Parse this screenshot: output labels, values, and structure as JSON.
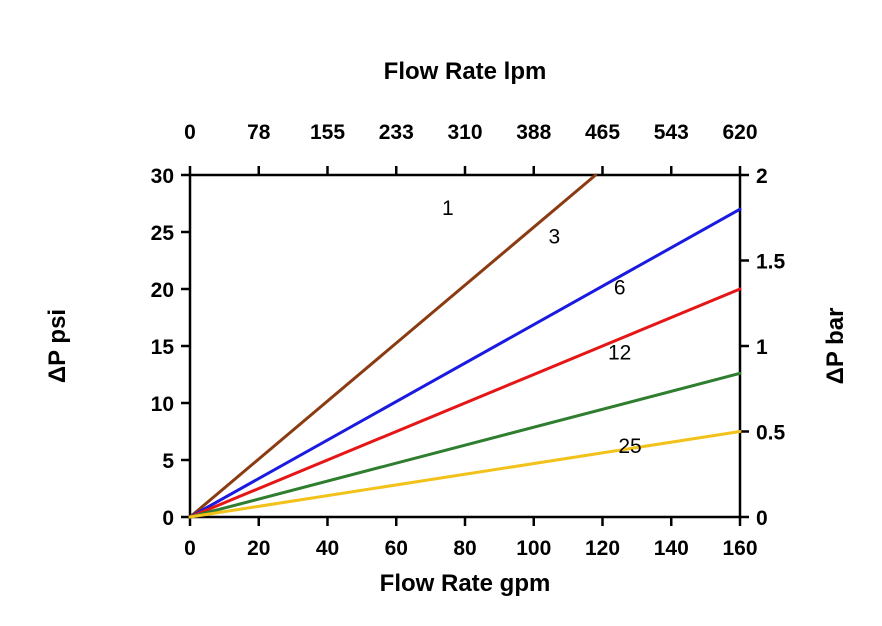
{
  "chart_data": {
    "type": "line",
    "title_top": "Flow Rate lpm",
    "xlabel_bottom": "Flow Rate gpm",
    "ylabel_left": "ΔP psi",
    "ylabel_right": "ΔP bar",
    "x_bottom": {
      "min": 0,
      "max": 160,
      "ticks": [
        0,
        20,
        40,
        60,
        80,
        100,
        120,
        140,
        160
      ]
    },
    "x_top": {
      "min": 0,
      "max": 620,
      "ticks": [
        0,
        78,
        155,
        233,
        310,
        388,
        465,
        543,
        620
      ]
    },
    "y_left": {
      "min": 0,
      "max": 30,
      "ticks": [
        0,
        5,
        10,
        15,
        20,
        25,
        30
      ]
    },
    "y_right": {
      "min": 0,
      "max": 2,
      "ticks": [
        0,
        0.5,
        1,
        1.5,
        2
      ]
    },
    "grid": false,
    "series": [
      {
        "name": "1",
        "color": "#8a3b12",
        "x": [
          0,
          118
        ],
        "y": [
          0,
          30
        ],
        "label_pos": {
          "x": 75,
          "y": 26.5
        }
      },
      {
        "name": "3",
        "color": "#1a1ae0",
        "x": [
          0,
          160
        ],
        "y": [
          0,
          27
        ],
        "label_pos": {
          "x": 106,
          "y": 24
        }
      },
      {
        "name": "6",
        "color": "#e51616",
        "x": [
          0,
          160
        ],
        "y": [
          0,
          20
        ],
        "label_pos": {
          "x": 125,
          "y": 19.5
        }
      },
      {
        "name": "12",
        "color": "#2f7d2f",
        "x": [
          0,
          160
        ],
        "y": [
          0,
          12.6
        ],
        "label_pos": {
          "x": 125,
          "y": 13.8
        }
      },
      {
        "name": "25",
        "color": "#f2c21a",
        "x": [
          0,
          160
        ],
        "y": [
          0,
          7.5
        ],
        "label_pos": {
          "x": 128,
          "y": 5.6
        }
      }
    ]
  }
}
